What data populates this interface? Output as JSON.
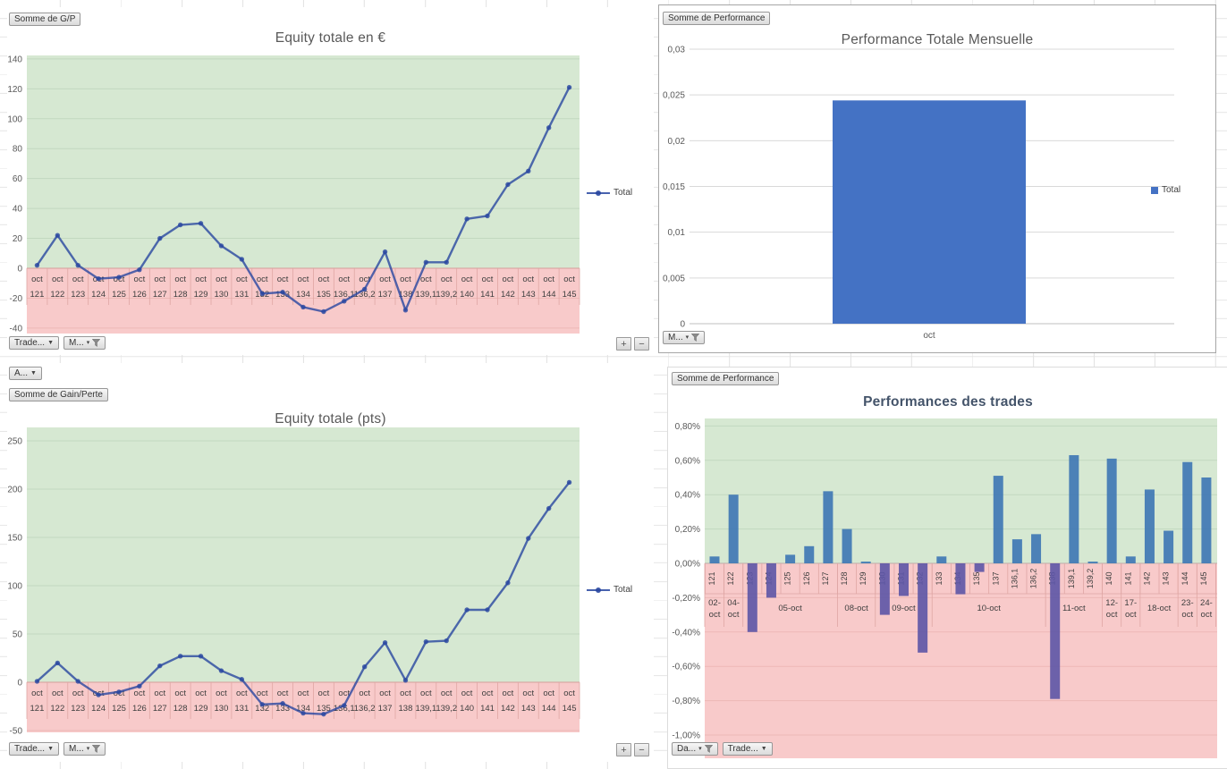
{
  "colors": {
    "green_bg": "#d6e8d2",
    "red_bg": "#f8caca",
    "grid_green": "#c2d8c0",
    "grid_red": "#edb8b6",
    "zero_line": "#d59d9b",
    "band_line": "#dfa6a4",
    "grid_grey": "#d9d9d9",
    "axis_text": "#595959",
    "label_text": "#3f3f3f",
    "line": "rgba(40,70,160,0.8)",
    "bar_month": "#4472c4",
    "bar_pos": "#3d76b4",
    "bar_neg": "#5c55a6",
    "title_grey": "#595959",
    "title_dark": "#44546a"
  },
  "ui": {
    "tl": {
      "field_button": "Somme de G/P",
      "footer": [
        {
          "label": "Trade...",
          "type": "dropdown"
        },
        {
          "label": "M...",
          "type": "filter"
        }
      ]
    },
    "tr": {
      "field_button": "Somme de Performance",
      "footer": [
        {
          "label": "M...",
          "type": "filter"
        }
      ]
    },
    "bl": {
      "top_button": {
        "label": "A...",
        "type": "dropdown"
      },
      "field_button": "Somme de Gain/Perte",
      "footer": [
        {
          "label": "Trade...",
          "type": "dropdown"
        },
        {
          "label": "M...",
          "type": "filter"
        }
      ]
    },
    "br": {
      "field_button": "Somme de Performance",
      "footer": [
        {
          "label": "Da...",
          "type": "filter"
        },
        {
          "label": "Trade...",
          "type": "dropdown"
        }
      ]
    },
    "zoom": {
      "plus": "+",
      "minus": "−"
    }
  },
  "chart_data": [
    {
      "id": "equity_eur",
      "type": "line",
      "title": "Equity totale en €",
      "legend": [
        "Total"
      ],
      "month_label": "oct",
      "categories": [
        "121",
        "122",
        "123",
        "124",
        "125",
        "126",
        "127",
        "128",
        "129",
        "130",
        "131",
        "132",
        "133",
        "134",
        "135",
        "136,1",
        "136,2",
        "137",
        "138",
        "139,1",
        "139,2",
        "140",
        "141",
        "142",
        "143",
        "144",
        "145"
      ],
      "values": [
        2,
        22,
        2,
        -7,
        -6,
        -1,
        20,
        29,
        30,
        15,
        6,
        -17,
        -16,
        -26,
        -29,
        -22,
        -14,
        11,
        -28,
        4,
        4,
        33,
        35,
        56,
        65,
        94,
        121
      ],
      "yticks": [
        140,
        120,
        100,
        80,
        60,
        40,
        20,
        0,
        -20,
        -40
      ],
      "ylim": [
        -43,
        143
      ],
      "grid": true,
      "legend_position": "right"
    },
    {
      "id": "perf_mensuelle",
      "type": "bar",
      "title": "Performance Totale Mensuelle",
      "legend": [
        "Total"
      ],
      "categories": [
        "oct"
      ],
      "values": [
        0.0244
      ],
      "yticks": [
        0,
        0.005,
        0.01,
        0.015,
        0.02,
        0.025,
        0.03
      ],
      "ytick_labels": [
        "0",
        "0,005",
        "0,01",
        "0,015",
        "0,02",
        "0,025",
        "0,03"
      ],
      "ylim": [
        0,
        0.03
      ],
      "grid": true,
      "legend_position": "right"
    },
    {
      "id": "equity_pts",
      "type": "line",
      "title": "Equity totale (pts)",
      "legend": [
        "Total"
      ],
      "month_label": "oct",
      "categories": [
        "121",
        "122",
        "123",
        "124",
        "125",
        "126",
        "127",
        "128",
        "129",
        "130",
        "131",
        "132",
        "133",
        "134",
        "135",
        "136,1",
        "136,2",
        "137",
        "138",
        "139,1",
        "139,2",
        "140",
        "141",
        "142",
        "143",
        "144",
        "145"
      ],
      "values": [
        1,
        20,
        1,
        -13,
        -10,
        -4,
        17,
        27,
        27,
        12,
        3,
        -23,
        -22,
        -32,
        -33,
        -24,
        16,
        41,
        2,
        42,
        43,
        75,
        75,
        103,
        149,
        180,
        207
      ],
      "yticks": [
        250,
        200,
        150,
        100,
        50,
        0,
        -50
      ],
      "ylim": [
        -54,
        264
      ],
      "grid": true,
      "legend_position": "right"
    },
    {
      "id": "perf_trades",
      "type": "bar",
      "title": "Performances des trades",
      "legend": [],
      "categories": [
        "121",
        "122",
        "123",
        "124",
        "125",
        "126",
        "127",
        "128",
        "129",
        "130",
        "131",
        "132",
        "133",
        "134",
        "135",
        "137",
        "136,1",
        "136,2",
        "138",
        "139,1",
        "139,2",
        "140",
        "141",
        "142",
        "143",
        "144",
        "145"
      ],
      "values": [
        0.04,
        0.4,
        -0.4,
        -0.2,
        0.05,
        0.1,
        0.42,
        0.2,
        0.01,
        -0.3,
        -0.19,
        -0.52,
        0.04,
        -0.18,
        -0.05,
        0.51,
        0.14,
        0.17,
        -0.79,
        0.63,
        0.01,
        0.61,
        0.04,
        0.43,
        0.19,
        0.59,
        0.5
      ],
      "value_unit": "%",
      "date_groups": [
        {
          "label": "02-oct",
          "count": 1
        },
        {
          "label": "04-oct",
          "count": 1
        },
        {
          "label": "05-oct",
          "count": 5
        },
        {
          "label": "08-oct",
          "count": 2
        },
        {
          "label": "09-oct",
          "count": 3
        },
        {
          "label": "10-oct",
          "count": 6
        },
        {
          "label": "11-oct",
          "count": 3
        },
        {
          "label": "12-oct",
          "count": 1
        },
        {
          "label": "17-oct",
          "count": 1
        },
        {
          "label": "18-oct",
          "count": 2
        },
        {
          "label": "23-oct",
          "count": 1
        },
        {
          "label": "24-oct",
          "count": 1
        }
      ],
      "yticks": [
        0.8,
        0.6,
        0.4,
        0.2,
        0,
        -0.2,
        -0.4,
        -0.6,
        -0.8,
        -1.0
      ],
      "ytick_labels": [
        "0,80%",
        "0,60%",
        "0,40%",
        "0,20%",
        "0,00%",
        "-0,20%",
        "-0,40%",
        "-0,60%",
        "-0,80%",
        "-1,00%"
      ],
      "ylim": [
        -1.0,
        0.8
      ],
      "grid": true
    }
  ]
}
